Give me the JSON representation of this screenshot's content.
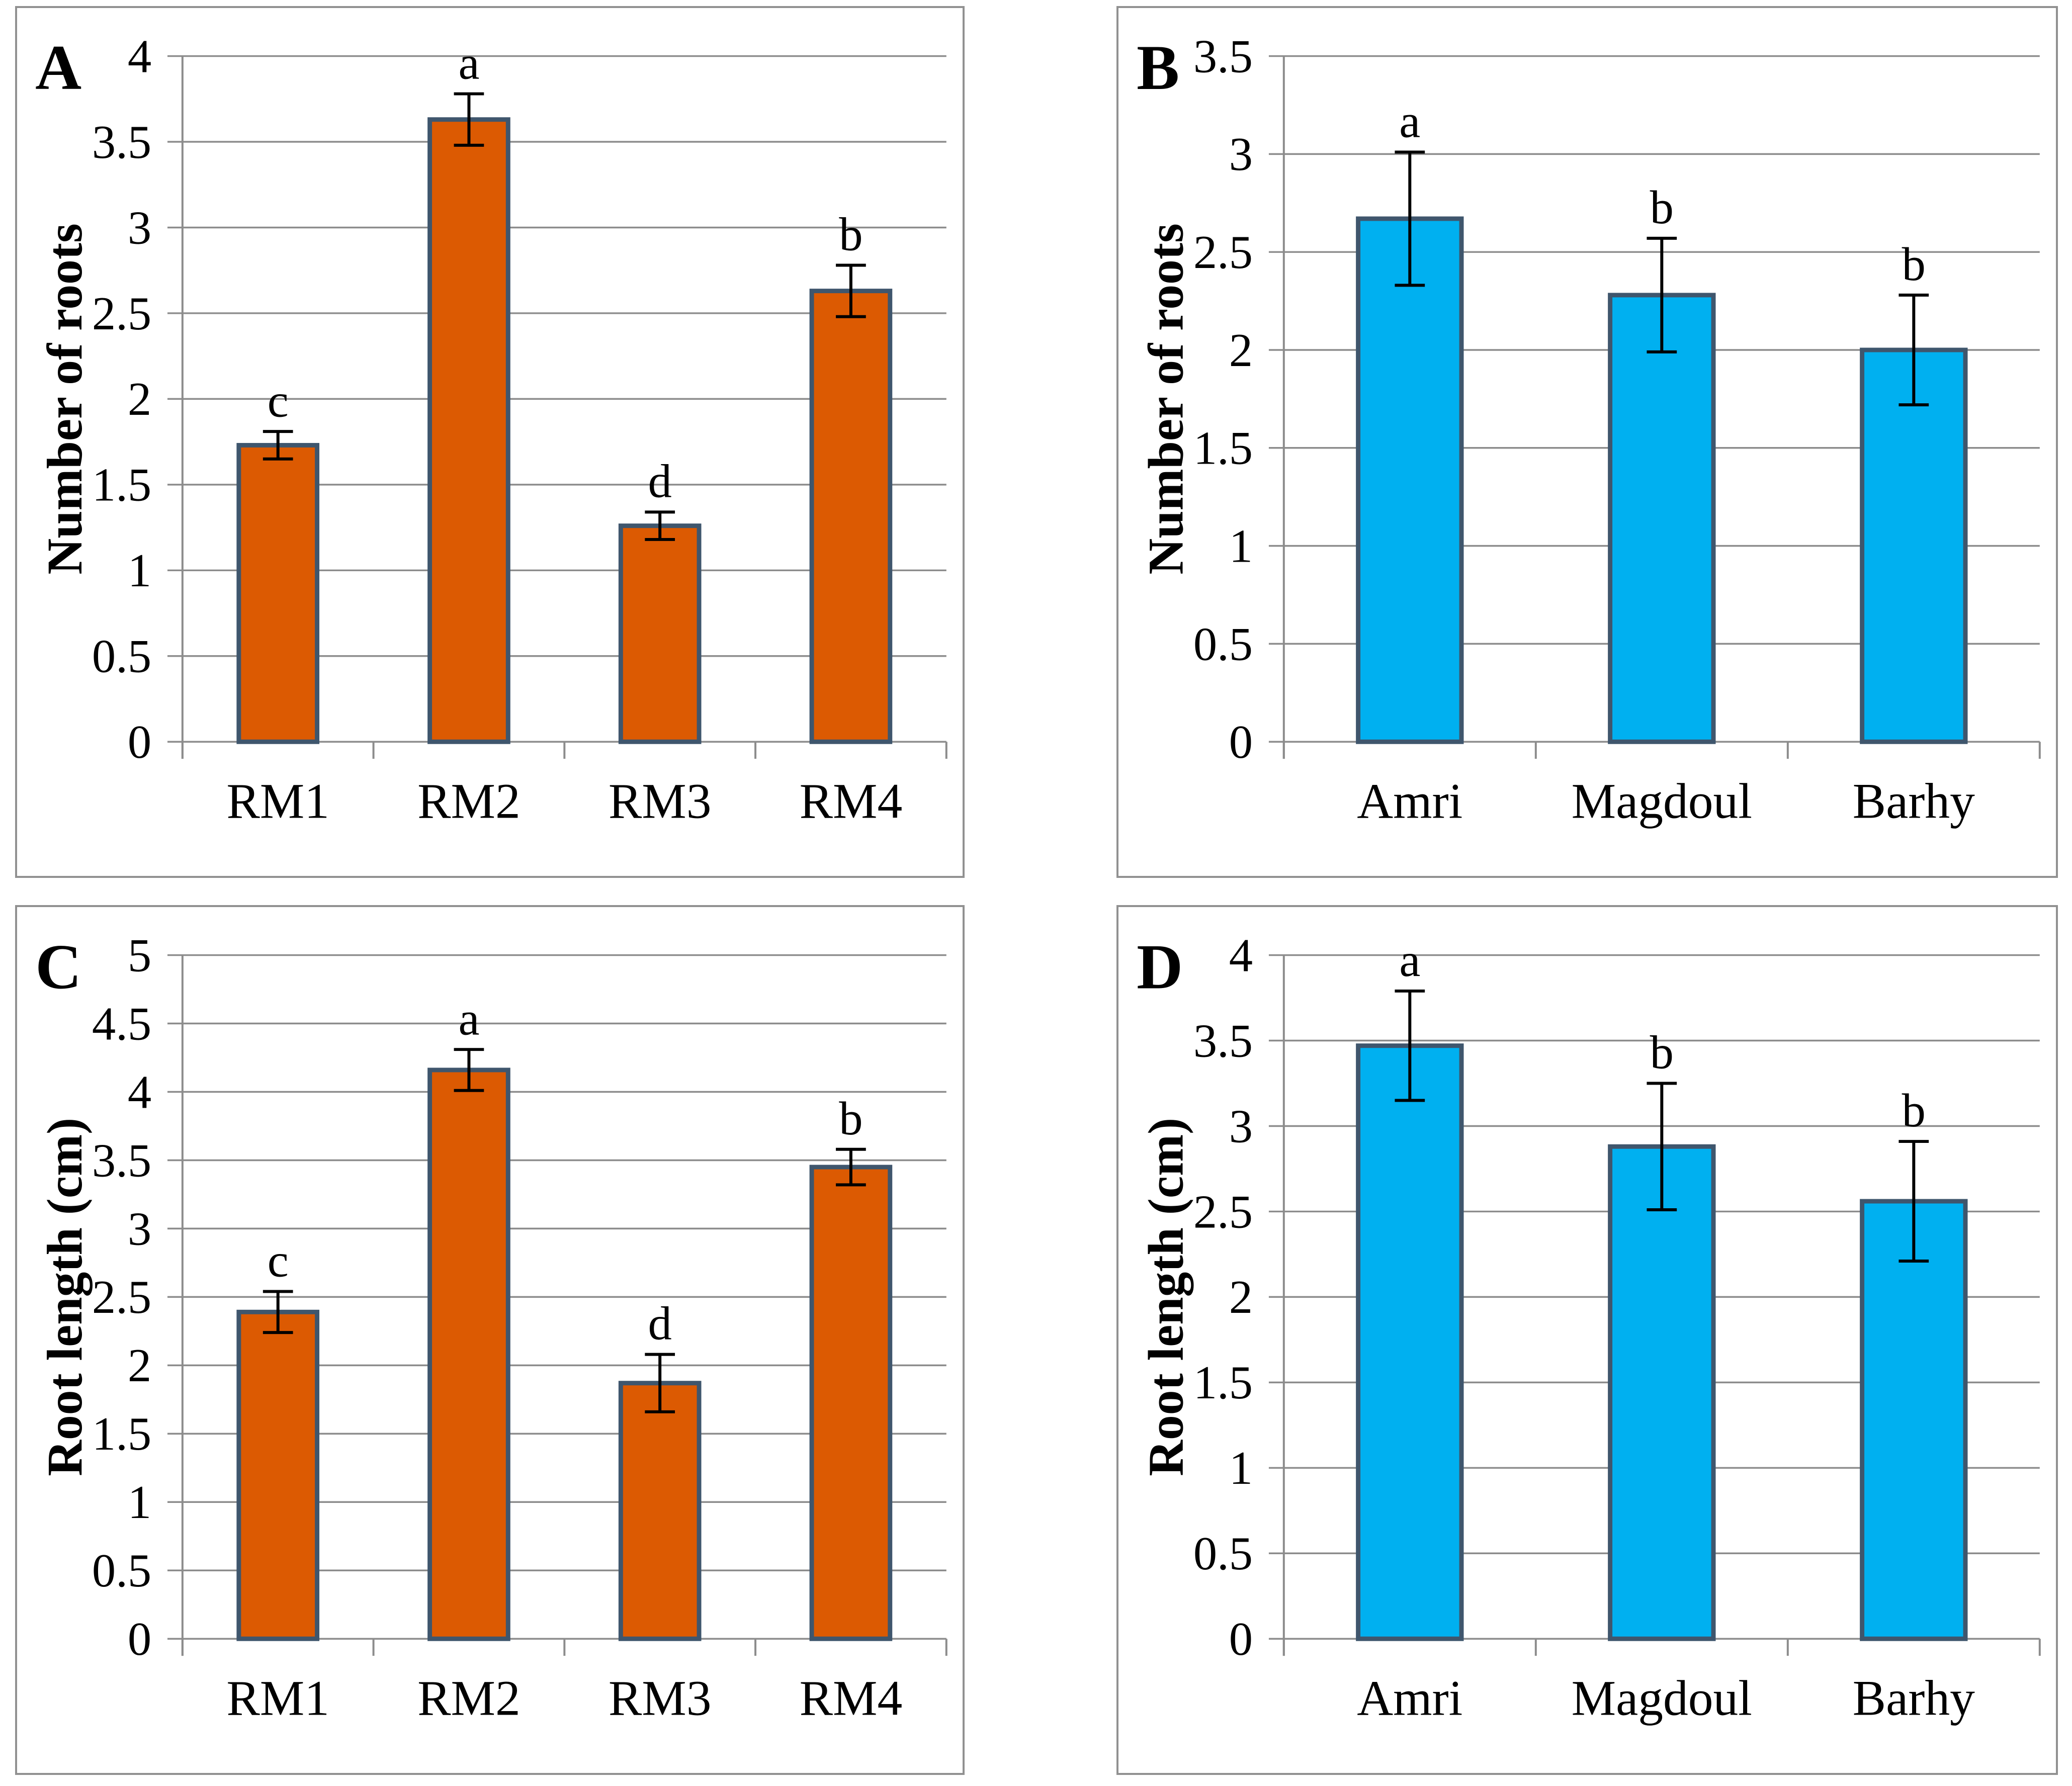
{
  "figure_title": "Four-panel bar chart figure (A, B, C, D)",
  "styles": {
    "orange_bar": "#DC5A02",
    "blue_bar": "#00B0F0",
    "bar_border": "#3F566D",
    "grid_color": "#8C8C8C",
    "error_color": "#000000",
    "panel_border": "#919191",
    "text_color": "#000000",
    "background": "#FFFFFF"
  },
  "chart_data": [
    {
      "panel": "A",
      "type": "bar",
      "title": "",
      "xlabel": "",
      "ylabel": "Number of roots",
      "ylim": [
        0,
        4
      ],
      "ytick_step": 0.5,
      "grid": true,
      "legend": "none",
      "categories": [
        "RM1",
        "RM2",
        "RM3",
        "RM4"
      ],
      "values": [
        1.73,
        3.63,
        1.26,
        2.63
      ],
      "errors": [
        0.08,
        0.15,
        0.08,
        0.15
      ],
      "sig_letters": [
        "c",
        "a",
        "d",
        "b"
      ],
      "bar_color": "#DC5A02"
    },
    {
      "panel": "B",
      "type": "bar",
      "title": "",
      "xlabel": "",
      "ylabel": "Number of roots",
      "ylim": [
        0,
        3.5
      ],
      "ytick_step": 0.5,
      "grid": true,
      "legend": "none",
      "categories": [
        "Amri",
        "Magdoul",
        "Barhy"
      ],
      "values": [
        2.67,
        2.28,
        2.0
      ],
      "errors": [
        0.34,
        0.29,
        0.28
      ],
      "sig_letters": [
        "a",
        "b",
        "b"
      ],
      "bar_color": "#00B0F0"
    },
    {
      "panel": "C",
      "type": "bar",
      "title": "",
      "xlabel": "",
      "ylabel": "Root length (cm)",
      "ylim": [
        0,
        5
      ],
      "ytick_step": 0.5,
      "grid": true,
      "legend": "none",
      "categories": [
        "RM1",
        "RM2",
        "RM3",
        "RM4"
      ],
      "values": [
        2.39,
        4.16,
        1.87,
        3.45
      ],
      "errors": [
        0.15,
        0.15,
        0.21,
        0.13
      ],
      "sig_letters": [
        "c",
        "a",
        "d",
        "b"
      ],
      "bar_color": "#DC5A02"
    },
    {
      "panel": "D",
      "type": "bar",
      "title": "",
      "xlabel": "",
      "ylabel": "Root length (cm)",
      "ylim": [
        0,
        4
      ],
      "ytick_step": 0.5,
      "grid": true,
      "legend": "none",
      "categories": [
        "Amri",
        "Magdoul",
        "Barhy"
      ],
      "values": [
        3.47,
        2.88,
        2.56
      ],
      "errors": [
        0.32,
        0.37,
        0.35
      ],
      "sig_letters": [
        "a",
        "b",
        "b"
      ],
      "bar_color": "#00B0F0"
    }
  ]
}
